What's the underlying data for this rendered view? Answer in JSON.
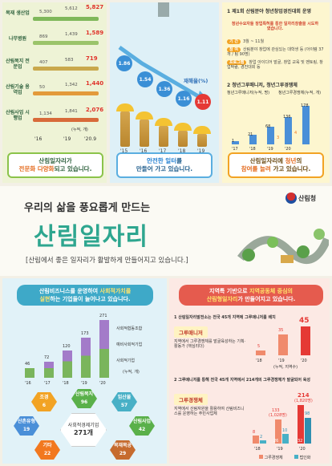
{
  "panel1": {
    "rows": [
      {
        "label": "목재\n생산업",
        "values": [
          "5,300",
          "5,612",
          "5,827"
        ]
      },
      {
        "label": "나무병원",
        "values": [
          "869",
          "1,439",
          "1,589"
        ]
      },
      {
        "label": "산림복지\n전문업",
        "values": [
          "407",
          "583",
          "719"
        ]
      },
      {
        "label": "산림기술\n용역업",
        "values": [
          "50",
          "1,342",
          "1,440"
        ]
      },
      {
        "label": "산림사업\n시행업",
        "values": [
          "1,134",
          "1,841",
          "2,076"
        ]
      }
    ],
    "unit": "(누적, 개)",
    "years": [
      "'16",
      "'19",
      "'20.9"
    ],
    "caption_line1": "산림일자리가",
    "caption_hl": "전문화 다양화",
    "caption_line2": "되고 있습니다."
  },
  "panel2": {
    "values": [
      "1.86",
      "1.54",
      "1.36",
      "1.16",
      "1.11"
    ],
    "years": [
      "'15",
      "'16",
      "'17",
      "'18",
      "'19"
    ],
    "legend": "재해율(%)",
    "caption_hl": "안전한 일터",
    "caption_line1": "를",
    "caption_line2": "만들어 가고 있습니다."
  },
  "panel3": {
    "title": "1 제1회 산림분야 청년창업경진대회 운영",
    "desc": "청년수요자들 창업특허를 통한 일자리창출을 시도하였습니다.",
    "info": [
      {
        "tag": "기 간",
        "text": "3월 ~ 11월"
      },
      {
        "tag": "참 여",
        "text": "산림분야 창업에 관심있는 대학생 등 (아이템 37개 / 팀 90명)"
      },
      {
        "tag": "프로그램",
        "text": "창업 아이디어 발굴, 창업 교육 및 멘토링, 창업박람, 경진대회 등"
      }
    ],
    "title2": "2 청년그루매니저, 청년그루경쟁체",
    "legend_a": "청년그루매니저(누적, 명)",
    "legend_b": "청년그루경쟁체(누적, 개)",
    "bars": [
      {
        "year": "'17",
        "a": "1",
        "b": ""
      },
      {
        "year": "'18",
        "a": "21",
        "b": ""
      },
      {
        "year": "'19",
        "a": "68",
        "b": "3"
      },
      {
        "year": "'20",
        "a": "136",
        "b": "4"
      },
      {
        "year": "",
        "a": "178",
        "b": ""
      }
    ],
    "caption_line1": "산림일자리에",
    "caption_hl1": "청년",
    "caption_line2": "의",
    "caption_hl2": "참여를 늘려",
    "caption_line3": "가고 있습니다."
  },
  "banner": {
    "subtitle": "우리의 삶을 풍요롭게 만드는",
    "title": "산림일자리",
    "tagline": "[산림에서 좋은 일자리가 활발하게 만들어지고 있습니다.]",
    "logo_text": "산림청"
  },
  "panel4": {
    "headline_a": "산림비즈니스를 운영하여 ",
    "headline_y": "사회적가치를",
    "headline_b": "실현",
    "headline_c": "하는 기업들이 늘어나고 있습니다.",
    "years": [
      "'16",
      "'17",
      "'18",
      "'19",
      "'20"
    ],
    "totals": [
      "46",
      "72",
      "120",
      "173",
      "271"
    ],
    "legend": [
      "사회적협동조합",
      "예비사회적기업",
      "사회적기업"
    ],
    "unit": "(누적, 개)",
    "center_label": "사회적경제기업",
    "center_value": "271개",
    "categories": [
      {
        "name": "조경",
        "value": "6"
      },
      {
        "name": "산림복지",
        "value": "96"
      },
      {
        "name": "임산물",
        "value": "57"
      },
      {
        "name": "산촌유형",
        "value": "19"
      },
      {
        "name": "산림사업",
        "value": "42"
      },
      {
        "name": "기타",
        "value": "22"
      },
      {
        "name": "목재목공",
        "value": "29"
      }
    ]
  },
  "panel5": {
    "headline_a": "지역특 기반으로 ",
    "headline_y": "지역공동체 중심의",
    "headline_b": "산림형일자리",
    "headline_c": "가 만들어지고 있습니다.",
    "item1": "1 산림일자리발전소는 전국 45개 지역에 그루매니저를 배치",
    "pill1": "그루매니저",
    "desc1": "지역에서 그루경쟁체를 발굴육성하는 기획·활동가 (핵심리더)",
    "chart1_years": [
      "'18",
      "'19",
      "'20"
    ],
    "chart1_values": [
      "5",
      "35",
      "45"
    ],
    "chart1_unit": "(누적, 지역수)",
    "item2": "2 그루매니저를 통해 전국 45개 지역에서 214개의 그루경쟁체가 발굴되어 육성",
    "pill2": "그루경쟁체",
    "desc2": "지역에서 산림자원을 활용하여 산림비즈니스를 운영하는 주민사업체",
    "chart2_years": [
      "'18",
      "'19",
      "'20"
    ],
    "chart2_top": [
      "",
      "133",
      "214"
    ],
    "chart2_top_sub": [
      "",
      "(1,028명)",
      "(1,820명)"
    ],
    "chart2_a": [
      "8",
      "26",
      "32"
    ],
    "chart2_b": [
      "2",
      "10",
      "98"
    ],
    "legend": [
      "그루경쟁체",
      "법인화"
    ]
  }
}
